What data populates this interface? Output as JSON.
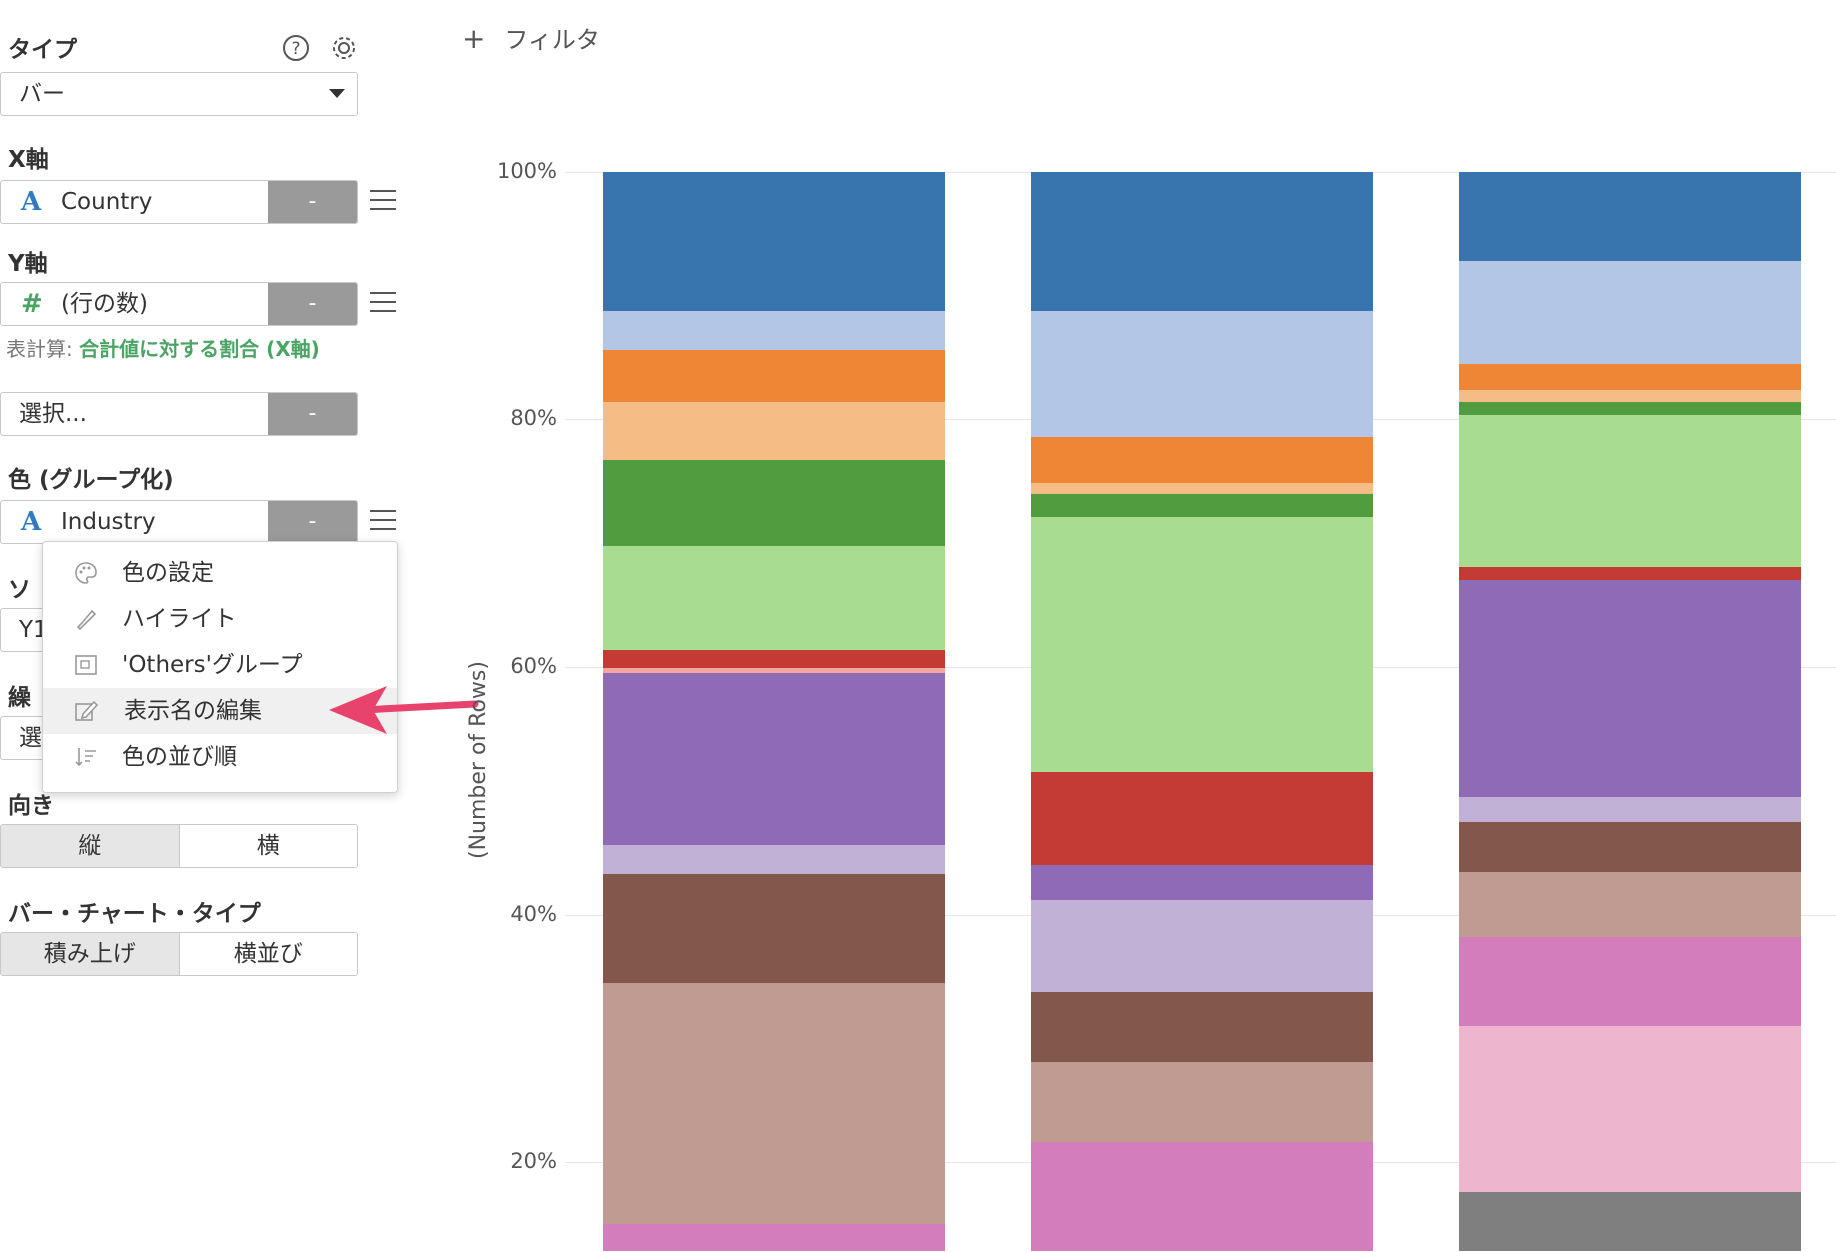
{
  "panel": {
    "type_label": "タイプ",
    "type_value": "バー",
    "x_label": "X軸",
    "x_value": "Country",
    "y_label": "Y軸",
    "y_value": "(行の数)",
    "calc_prefix": "表計算:",
    "calc_value": "合計値に対する割合 (X軸)",
    "select_placeholder": "選択...",
    "color_label": "色 (グループ化)",
    "color_value": "Industry",
    "sort_label": "ソ",
    "sort_value": "Y1",
    "repeat_label": "繰",
    "repeat_value": "選",
    "direction_label": "向き",
    "direction_options": [
      "縦",
      "横"
    ],
    "bar_type_label": "バー・チャート・タイプ",
    "bar_type_options": [
      "積み上げ",
      "横並び"
    ],
    "minus": "-"
  },
  "filter_label": "フィルタ",
  "filter_plus": "+",
  "menu": {
    "items": [
      {
        "label": "色の設定",
        "icon": "palette-icon"
      },
      {
        "label": "ハイライト",
        "icon": "highlighter-icon"
      },
      {
        "label": "'Others'グループ",
        "icon": "group-icon"
      },
      {
        "label": "表示名の編集",
        "icon": "edit-icon"
      },
      {
        "label": "色の並び順",
        "icon": "sort-icon"
      }
    ],
    "highlighted_index": 3
  },
  "colors": {
    "accent_green": "#4aa564",
    "icon_blue": "#2f7bc4",
    "arrow_pink": "#e8436d"
  },
  "chart_data": {
    "type": "bar",
    "stacked": true,
    "ylabel": "(Number of Rows)",
    "yticks": [
      "20%",
      "40%",
      "60%",
      "80%",
      "100%"
    ],
    "ylim_visible": [
      12.8,
      100
    ],
    "bars": [
      {
        "segments": [
          {
            "color": "#d37dbd",
            "from": 12.8,
            "to": 15.0
          },
          {
            "color": "#bf9b92",
            "from": 15.0,
            "to": 34.5
          },
          {
            "color": "#83574c",
            "from": 34.5,
            "to": 43.3
          },
          {
            "color": "#c1b1d6",
            "from": 43.3,
            "to": 45.6
          },
          {
            "color": "#8f6bb7",
            "from": 45.6,
            "to": 59.5
          },
          {
            "color": "#f5a6a1",
            "from": 59.5,
            "to": 59.9
          },
          {
            "color": "#c33b34",
            "from": 59.9,
            "to": 61.4
          },
          {
            "color": "#a8dc91",
            "from": 61.4,
            "to": 69.8
          },
          {
            "color": "#519c3f",
            "from": 69.8,
            "to": 76.7
          },
          {
            "color": "#f5bd85",
            "from": 76.7,
            "to": 81.4
          },
          {
            "color": "#ef8636",
            "from": 81.4,
            "to": 85.6
          },
          {
            "color": "#b3c6e5",
            "from": 85.6,
            "to": 88.8
          },
          {
            "color": "#3875af",
            "from": 88.8,
            "to": 100
          }
        ]
      },
      {
        "segments": [
          {
            "color": "#d37dbd",
            "from": 12.8,
            "to": 21.6
          },
          {
            "color": "#bf9b92",
            "from": 21.6,
            "to": 28.1
          },
          {
            "color": "#83574c",
            "from": 28.1,
            "to": 33.7
          },
          {
            "color": "#c1b1d6",
            "from": 33.7,
            "to": 41.2
          },
          {
            "color": "#8f6bb7",
            "from": 41.2,
            "to": 44.0
          },
          {
            "color": "#c33b34",
            "from": 44.0,
            "to": 51.5
          },
          {
            "color": "#a8dc91",
            "from": 51.5,
            "to": 72.1
          },
          {
            "color": "#519c3f",
            "from": 72.1,
            "to": 74.0
          },
          {
            "color": "#f5bd85",
            "from": 74.0,
            "to": 74.9
          },
          {
            "color": "#ef8636",
            "from": 74.9,
            "to": 78.6
          },
          {
            "color": "#b3c6e5",
            "from": 78.6,
            "to": 88.8
          },
          {
            "color": "#3875af",
            "from": 88.8,
            "to": 100
          }
        ]
      },
      {
        "segments": [
          {
            "color": "#7f7f7f",
            "from": 12.8,
            "to": 17.6
          },
          {
            "color": "#edb6ce",
            "from": 17.6,
            "to": 31.0
          },
          {
            "color": "#d37dbd",
            "from": 31.0,
            "to": 38.2
          },
          {
            "color": "#bf9b92",
            "from": 38.2,
            "to": 43.4
          },
          {
            "color": "#83574c",
            "from": 43.4,
            "to": 47.5
          },
          {
            "color": "#c1b1d6",
            "from": 47.5,
            "to": 49.5
          },
          {
            "color": "#8f6bb7",
            "from": 49.5,
            "to": 67.0
          },
          {
            "color": "#c33b34",
            "from": 67.0,
            "to": 68.1
          },
          {
            "color": "#a8dc91",
            "from": 68.1,
            "to": 80.4
          },
          {
            "color": "#519c3f",
            "from": 80.4,
            "to": 81.4
          },
          {
            "color": "#f5bd85",
            "from": 81.4,
            "to": 82.4
          },
          {
            "color": "#ef8636",
            "from": 82.4,
            "to": 84.5
          },
          {
            "color": "#b3c6e5",
            "from": 84.5,
            "to": 92.8
          },
          {
            "color": "#3875af",
            "from": 92.8,
            "to": 100
          }
        ]
      }
    ]
  }
}
